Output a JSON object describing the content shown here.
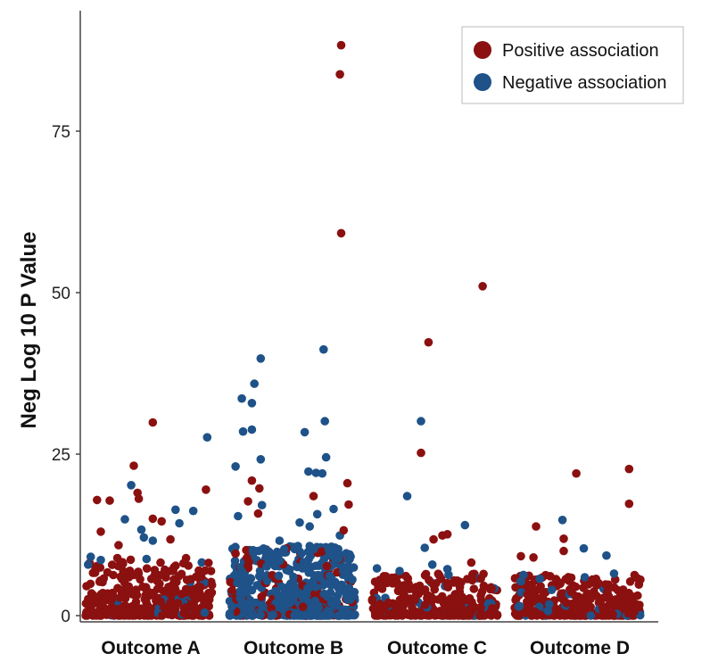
{
  "chart_data": {
    "type": "scatter",
    "ylabel": "Neg Log 10 P Value",
    "ylim": [
      0,
      90
    ],
    "yticks": [
      0,
      25,
      50,
      75
    ],
    "grid": false,
    "legend_position": "top-right",
    "categories": [
      "Outcome A",
      "Outcome B",
      "Outcome C",
      "Outcome D"
    ],
    "series": [
      {
        "name": "Positive association",
        "color": "#8b1010",
        "points": [
          {
            "category": "Outcome A",
            "x": 0.53,
            "y": 29.9
          },
          {
            "category": "Outcome A",
            "x": 0.38,
            "y": 23.2
          },
          {
            "category": "Outcome A",
            "x": 0.95,
            "y": 19.5
          },
          {
            "category": "Outcome A",
            "x": 0.41,
            "y": 19.0
          },
          {
            "category": "Outcome A",
            "x": 0.42,
            "y": 18.1
          },
          {
            "category": "Outcome A",
            "x": 0.09,
            "y": 17.9
          },
          {
            "category": "Outcome A",
            "x": 0.19,
            "y": 17.8
          },
          {
            "category": "Outcome A",
            "x": 0.53,
            "y": 15.0
          },
          {
            "category": "Outcome A",
            "x": 0.6,
            "y": 14.6
          },
          {
            "category": "Outcome A",
            "x": 0.12,
            "y": 13.0
          },
          {
            "category": "Outcome A",
            "x": 0.67,
            "y": 11.8
          },
          {
            "category": "Outcome A",
            "x": 0.26,
            "y": 10.9
          },
          {
            "category": "Outcome B",
            "x": 0.89,
            "y": 88.3
          },
          {
            "category": "Outcome B",
            "x": 0.88,
            "y": 83.8
          },
          {
            "category": "Outcome B",
            "x": 0.89,
            "y": 59.2
          },
          {
            "category": "Outcome B",
            "x": 0.94,
            "y": 20.5
          },
          {
            "category": "Outcome B",
            "x": 0.18,
            "y": 20.9
          },
          {
            "category": "Outcome B",
            "x": 0.24,
            "y": 19.7
          },
          {
            "category": "Outcome B",
            "x": 0.67,
            "y": 18.5
          },
          {
            "category": "Outcome B",
            "x": 0.15,
            "y": 17.7
          },
          {
            "category": "Outcome B",
            "x": 0.95,
            "y": 17.2
          },
          {
            "category": "Outcome B",
            "x": 0.23,
            "y": 15.8
          },
          {
            "category": "Outcome B",
            "x": 0.91,
            "y": 13.2
          },
          {
            "category": "Outcome B",
            "x": 0.05,
            "y": 9.6
          },
          {
            "category": "Outcome C",
            "x": 0.88,
            "y": 51.0
          },
          {
            "category": "Outcome C",
            "x": 0.45,
            "y": 42.3
          },
          {
            "category": "Outcome C",
            "x": 0.39,
            "y": 25.2
          },
          {
            "category": "Outcome C",
            "x": 0.49,
            "y": 11.8
          },
          {
            "category": "Outcome C",
            "x": 0.56,
            "y": 12.4
          },
          {
            "category": "Outcome C",
            "x": 0.6,
            "y": 12.6
          },
          {
            "category": "Outcome C",
            "x": 0.79,
            "y": 8.2
          },
          {
            "category": "Outcome D",
            "x": 0.49,
            "y": 22.0
          },
          {
            "category": "Outcome D",
            "x": 0.91,
            "y": 22.7
          },
          {
            "category": "Outcome D",
            "x": 0.91,
            "y": 17.3
          },
          {
            "category": "Outcome D",
            "x": 0.17,
            "y": 13.8
          },
          {
            "category": "Outcome D",
            "x": 0.39,
            "y": 11.9
          },
          {
            "category": "Outcome D",
            "x": 0.39,
            "y": 10.0
          },
          {
            "category": "Outcome D",
            "x": 0.05,
            "y": 9.2
          },
          {
            "category": "Outcome D",
            "x": 0.15,
            "y": 9.0
          }
        ]
      },
      {
        "name": "Negative association",
        "color": "#1e5288",
        "points": [
          {
            "category": "Outcome A",
            "x": 0.96,
            "y": 27.6
          },
          {
            "category": "Outcome A",
            "x": 0.36,
            "y": 20.2
          },
          {
            "category": "Outcome A",
            "x": 0.85,
            "y": 16.2
          },
          {
            "category": "Outcome A",
            "x": 0.71,
            "y": 16.4
          },
          {
            "category": "Outcome A",
            "x": 0.31,
            "y": 14.9
          },
          {
            "category": "Outcome A",
            "x": 0.74,
            "y": 14.3
          },
          {
            "category": "Outcome A",
            "x": 0.44,
            "y": 13.3
          },
          {
            "category": "Outcome A",
            "x": 0.46,
            "y": 12.1
          },
          {
            "category": "Outcome A",
            "x": 0.53,
            "y": 11.6
          },
          {
            "category": "Outcome A",
            "x": 0.04,
            "y": 9.1
          },
          {
            "category": "Outcome A",
            "x": 0.12,
            "y": 8.6
          },
          {
            "category": "Outcome A",
            "x": 0.02,
            "y": 7.9
          },
          {
            "category": "Outcome B",
            "x": 0.25,
            "y": 39.8
          },
          {
            "category": "Outcome B",
            "x": 0.75,
            "y": 41.2
          },
          {
            "category": "Outcome B",
            "x": 0.2,
            "y": 35.9
          },
          {
            "category": "Outcome B",
            "x": 0.1,
            "y": 33.6
          },
          {
            "category": "Outcome B",
            "x": 0.18,
            "y": 32.9
          },
          {
            "category": "Outcome B",
            "x": 0.76,
            "y": 30.1
          },
          {
            "category": "Outcome B",
            "x": 0.11,
            "y": 28.5
          },
          {
            "category": "Outcome B",
            "x": 0.18,
            "y": 28.8
          },
          {
            "category": "Outcome B",
            "x": 0.6,
            "y": 28.4
          },
          {
            "category": "Outcome B",
            "x": 0.77,
            "y": 24.5
          },
          {
            "category": "Outcome B",
            "x": 0.25,
            "y": 24.2
          },
          {
            "category": "Outcome B",
            "x": 0.05,
            "y": 23.1
          },
          {
            "category": "Outcome B",
            "x": 0.69,
            "y": 22.1
          },
          {
            "category": "Outcome B",
            "x": 0.74,
            "y": 22.0
          },
          {
            "category": "Outcome B",
            "x": 0.63,
            "y": 22.3
          },
          {
            "category": "Outcome B",
            "x": 0.26,
            "y": 17.1
          },
          {
            "category": "Outcome B",
            "x": 0.83,
            "y": 16.5
          },
          {
            "category": "Outcome B",
            "x": 0.7,
            "y": 15.7
          },
          {
            "category": "Outcome B",
            "x": 0.07,
            "y": 15.4
          },
          {
            "category": "Outcome B",
            "x": 0.56,
            "y": 14.4
          },
          {
            "category": "Outcome B",
            "x": 0.64,
            "y": 13.8
          },
          {
            "category": "Outcome B",
            "x": 0.88,
            "y": 12.4
          },
          {
            "category": "Outcome B",
            "x": 0.4,
            "y": 11.6
          },
          {
            "category": "Outcome B",
            "x": 0.52,
            "y": 10.3
          },
          {
            "category": "Outcome B",
            "x": 0.32,
            "y": 9.8
          },
          {
            "category": "Outcome C",
            "x": 0.39,
            "y": 30.1
          },
          {
            "category": "Outcome C",
            "x": 0.28,
            "y": 18.5
          },
          {
            "category": "Outcome C",
            "x": 0.74,
            "y": 14.0
          },
          {
            "category": "Outcome C",
            "x": 0.42,
            "y": 10.5
          },
          {
            "category": "Outcome C",
            "x": 0.48,
            "y": 7.9
          },
          {
            "category": "Outcome C",
            "x": 0.04,
            "y": 7.3
          },
          {
            "category": "Outcome C",
            "x": 0.22,
            "y": 6.9
          },
          {
            "category": "Outcome C",
            "x": 0.6,
            "y": 7.2
          },
          {
            "category": "Outcome D",
            "x": 0.38,
            "y": 14.8
          },
          {
            "category": "Outcome D",
            "x": 0.55,
            "y": 10.4
          },
          {
            "category": "Outcome D",
            "x": 0.73,
            "y": 9.3
          },
          {
            "category": "Outcome D",
            "x": 0.79,
            "y": 6.5
          },
          {
            "category": "Outcome D",
            "x": 0.07,
            "y": 6.3
          },
          {
            "category": "Outcome D",
            "x": 0.05,
            "y": 5.3
          },
          {
            "category": "Outcome D",
            "x": 0.2,
            "y": 5.7
          }
        ]
      }
    ]
  }
}
